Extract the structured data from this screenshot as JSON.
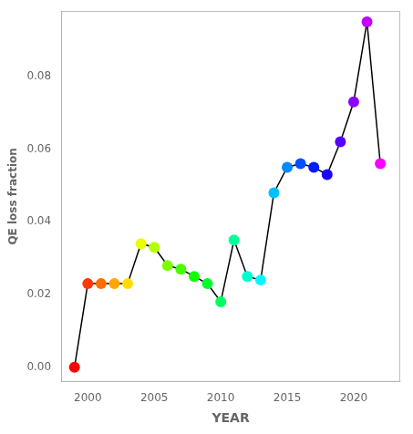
{
  "chart_data": {
    "type": "line",
    "x": [
      1999,
      2000,
      2001,
      2002,
      2003,
      2004,
      2005,
      2006,
      2007,
      2008,
      2009,
      2010,
      2011,
      2012,
      2013,
      2014,
      2015,
      2016,
      2017,
      2018,
      2019,
      2020,
      2021,
      2022
    ],
    "values": [
      0.0,
      0.023,
      0.023,
      0.023,
      0.023,
      0.034,
      0.033,
      0.028,
      0.027,
      0.025,
      0.023,
      0.018,
      0.035,
      0.025,
      0.024,
      0.048,
      0.055,
      0.056,
      0.055,
      0.053,
      0.062,
      0.073,
      0.095,
      0.056
    ],
    "color": "#000000",
    "colors": [
      "#ff0000",
      "#ff3700",
      "#ff6e00",
      "#ffa600",
      "#ffdd00",
      "#eaff00",
      "#b3ff00",
      "#7cff00",
      "#44ff00",
      "#0dff00",
      "#00ff2a",
      "#00ff61",
      "#00ff99",
      "#00ffd0",
      "#00f7ff",
      "#00c0ff",
      "#0089ff",
      "#0051ff",
      "#001aff",
      "#1d00ff",
      "#5400ff",
      "#8b00ff",
      "#c300ff",
      "#fa00ff"
    ],
    "marker": "circle",
    "xlabel": "YEAR",
    "ylabel": "QE loss fraction",
    "xlim": [
      1998,
      2023.5
    ],
    "ylim": [
      -0.004,
      0.098
    ],
    "xticks": [
      2000,
      2005,
      2010,
      2015,
      2020
    ],
    "yticks": [
      {
        "value": 0.0,
        "label": "0.00"
      },
      {
        "value": 0.02,
        "label": "0.02"
      },
      {
        "value": 0.04,
        "label": "0.04"
      },
      {
        "value": 0.06,
        "label": "0.06"
      },
      {
        "value": 0.08,
        "label": "0.08"
      }
    ],
    "grid": false,
    "legend": false
  }
}
